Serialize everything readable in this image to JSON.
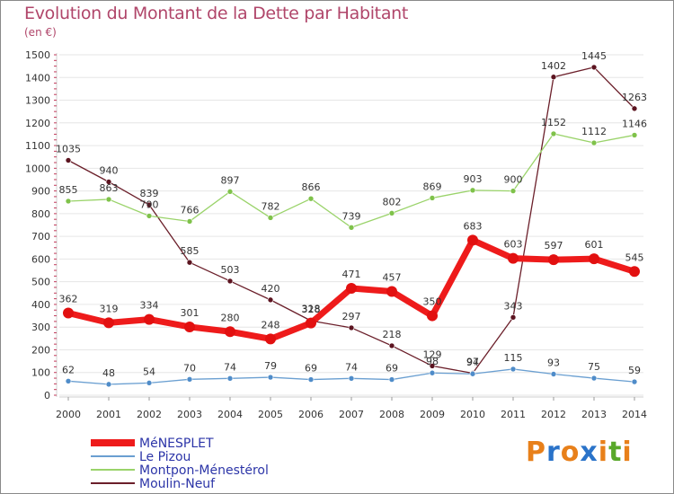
{
  "header": {
    "title": "Evolution du Montant de la Dette par Habitant",
    "subtitle": "(en €)"
  },
  "logo": {
    "text": "Proxiti",
    "colors": [
      "#e8801a",
      "#2a73c9",
      "#e8801a",
      "#2a73c9",
      "#e8801a",
      "#59a82a",
      "#e8801a"
    ]
  },
  "chart_data": {
    "type": "line",
    "title": "Evolution du Montant de la Dette par Habitant",
    "subtitle": "(en €)",
    "xlabel": "",
    "ylabel": "",
    "x": [
      "2000",
      "2001",
      "2002",
      "2003",
      "2004",
      "2005",
      "2006",
      "2007",
      "2008",
      "2009",
      "2010",
      "2011",
      "2012",
      "2013",
      "2014"
    ],
    "ylim": [
      0,
      1500
    ],
    "yticks": [
      0,
      100,
      200,
      300,
      400,
      500,
      600,
      700,
      800,
      900,
      1000,
      1100,
      1200,
      1300,
      1400,
      1500
    ],
    "grid": true,
    "legend_position": "bottom-left",
    "series": [
      {
        "name": "Moulin-Neuf",
        "color": "#6b1f2a",
        "marker": "#5c1420",
        "width": 1.3,
        "r": 3,
        "values": [
          1035,
          940,
          839,
          585,
          503,
          420,
          328,
          297,
          218,
          129,
          97,
          343,
          1402,
          1445,
          1263
        ]
      },
      {
        "name": "Montpon-Ménestérol",
        "color": "#9ad36a",
        "marker": "#7fc24a",
        "width": 1.3,
        "r": 3,
        "values": [
          855,
          863,
          790,
          766,
          897,
          782,
          866,
          739,
          802,
          869,
          903,
          900,
          1152,
          1112,
          1146
        ]
      },
      {
        "name": "Le Pizou",
        "color": "#6a9fd1",
        "marker": "#4f8cc9",
        "width": 1.3,
        "r": 3,
        "values": [
          62,
          48,
          54,
          70,
          74,
          79,
          69,
          74,
          69,
          98,
          94,
          115,
          93,
          75,
          59
        ]
      },
      {
        "name": "MéNESPLET",
        "color": "#ee1b1b",
        "marker": "#e21010",
        "width": 7,
        "r": 6,
        "values": [
          362,
          319,
          334,
          301,
          280,
          248,
          318,
          471,
          457,
          350,
          683,
          603,
          597,
          601,
          545
        ]
      }
    ],
    "legend": [
      {
        "name": "MéNESPLET",
        "color": "#ee1b1b",
        "width": 8
      },
      {
        "name": "Le Pizou",
        "color": "#6a9fd1",
        "width": 2
      },
      {
        "name": "Montpon-Ménestérol",
        "color": "#9ad36a",
        "width": 2
      },
      {
        "name": "Moulin-Neuf",
        "color": "#6b1f2a",
        "width": 2
      }
    ]
  }
}
